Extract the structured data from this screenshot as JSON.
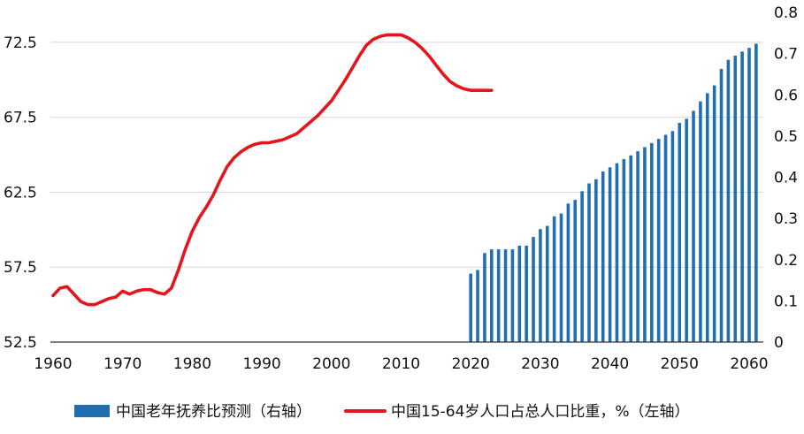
{
  "chart_data": {
    "type": "bar+line",
    "x_axis": {
      "range": [
        1960,
        2061
      ],
      "ticks": [
        1960,
        1970,
        1980,
        1990,
        2000,
        2010,
        2020,
        2030,
        2040,
        2050,
        2060
      ]
    },
    "y_left": {
      "range": [
        52.5,
        74.5
      ],
      "ticks": [
        52.5,
        57.5,
        62.5,
        67.5,
        72.5
      ],
      "tick_labels": [
        "52.5",
        "57.5",
        "62.5",
        "67.5",
        "72.5"
      ]
    },
    "y_right": {
      "range": [
        0,
        0.8
      ],
      "ticks": [
        0,
        0.1,
        0.2,
        0.3,
        0.4,
        0.5,
        0.6,
        0.7,
        0.8
      ],
      "tick_labels": [
        "0",
        "0.1",
        "0.2",
        "0.3",
        "0.4",
        "0.5",
        "0.6",
        "0.7",
        "0.8"
      ]
    },
    "grid": "horizontal",
    "legend_position": "bottom",
    "series": [
      {
        "name": "中国老年抚养比预测（右轴）",
        "type": "bar",
        "axis": "right",
        "color": "#1f6fb2",
        "x": [
          2020,
          2021,
          2022,
          2023,
          2024,
          2025,
          2026,
          2027,
          2028,
          2029,
          2030,
          2031,
          2032,
          2033,
          2034,
          2035,
          2036,
          2037,
          2038,
          2039,
          2040,
          2041,
          2042,
          2043,
          2044,
          2045,
          2046,
          2047,
          2048,
          2049,
          2050,
          2051,
          2052,
          2053,
          2054,
          2055,
          2056,
          2057,
          2058,
          2059,
          2060,
          2061
        ],
        "values": [
          0.166,
          0.175,
          0.216,
          0.225,
          0.225,
          0.225,
          0.225,
          0.234,
          0.234,
          0.255,
          0.274,
          0.282,
          0.305,
          0.312,
          0.336,
          0.345,
          0.366,
          0.385,
          0.395,
          0.414,
          0.424,
          0.434,
          0.444,
          0.453,
          0.463,
          0.473,
          0.483,
          0.493,
          0.503,
          0.512,
          0.532,
          0.542,
          0.561,
          0.584,
          0.604,
          0.623,
          0.663,
          0.685,
          0.695,
          0.705,
          0.714,
          0.724
        ]
      },
      {
        "name": "中国15-64岁人口占总人口比重，%（左轴）",
        "type": "line",
        "axis": "left",
        "color": "#e5151b",
        "x": [
          1960,
          1961,
          1962,
          1963,
          1964,
          1965,
          1966,
          1967,
          1968,
          1969,
          1970,
          1971,
          1972,
          1973,
          1974,
          1975,
          1976,
          1977,
          1978,
          1979,
          1980,
          1981,
          1982,
          1983,
          1984,
          1985,
          1986,
          1987,
          1988,
          1989,
          1990,
          1991,
          1992,
          1993,
          1994,
          1995,
          1996,
          1997,
          1998,
          1999,
          2000,
          2001,
          2002,
          2003,
          2004,
          2005,
          2006,
          2007,
          2008,
          2009,
          2010,
          2011,
          2012,
          2013,
          2014,
          2015,
          2016,
          2017,
          2018,
          2019,
          2020,
          2021,
          2022,
          2023
        ],
        "values": [
          55.6,
          56.1,
          56.2,
          55.7,
          55.2,
          55.0,
          55.0,
          55.2,
          55.4,
          55.5,
          55.9,
          55.7,
          55.9,
          56.0,
          56.0,
          55.8,
          55.7,
          56.1,
          57.3,
          58.7,
          59.9,
          60.8,
          61.5,
          62.3,
          63.3,
          64.2,
          64.8,
          65.2,
          65.5,
          65.7,
          65.8,
          65.8,
          65.9,
          66.0,
          66.2,
          66.4,
          66.8,
          67.2,
          67.6,
          68.1,
          68.6,
          69.3,
          70.0,
          70.8,
          71.6,
          72.3,
          72.7,
          72.9,
          73.0,
          73.0,
          73.0,
          72.8,
          72.5,
          72.1,
          71.6,
          71.0,
          70.4,
          69.9,
          69.6,
          69.4,
          69.3,
          69.3,
          69.3,
          69.3
        ]
      }
    ],
    "legend": [
      {
        "label": "中国老年抚养比预测（右轴）",
        "swatch": "bar",
        "color": "#1f6fb2"
      },
      {
        "label": "中国15-64岁人口占总人口比重，%（左轴）",
        "swatch": "line",
        "color": "#e5151b"
      }
    ]
  }
}
